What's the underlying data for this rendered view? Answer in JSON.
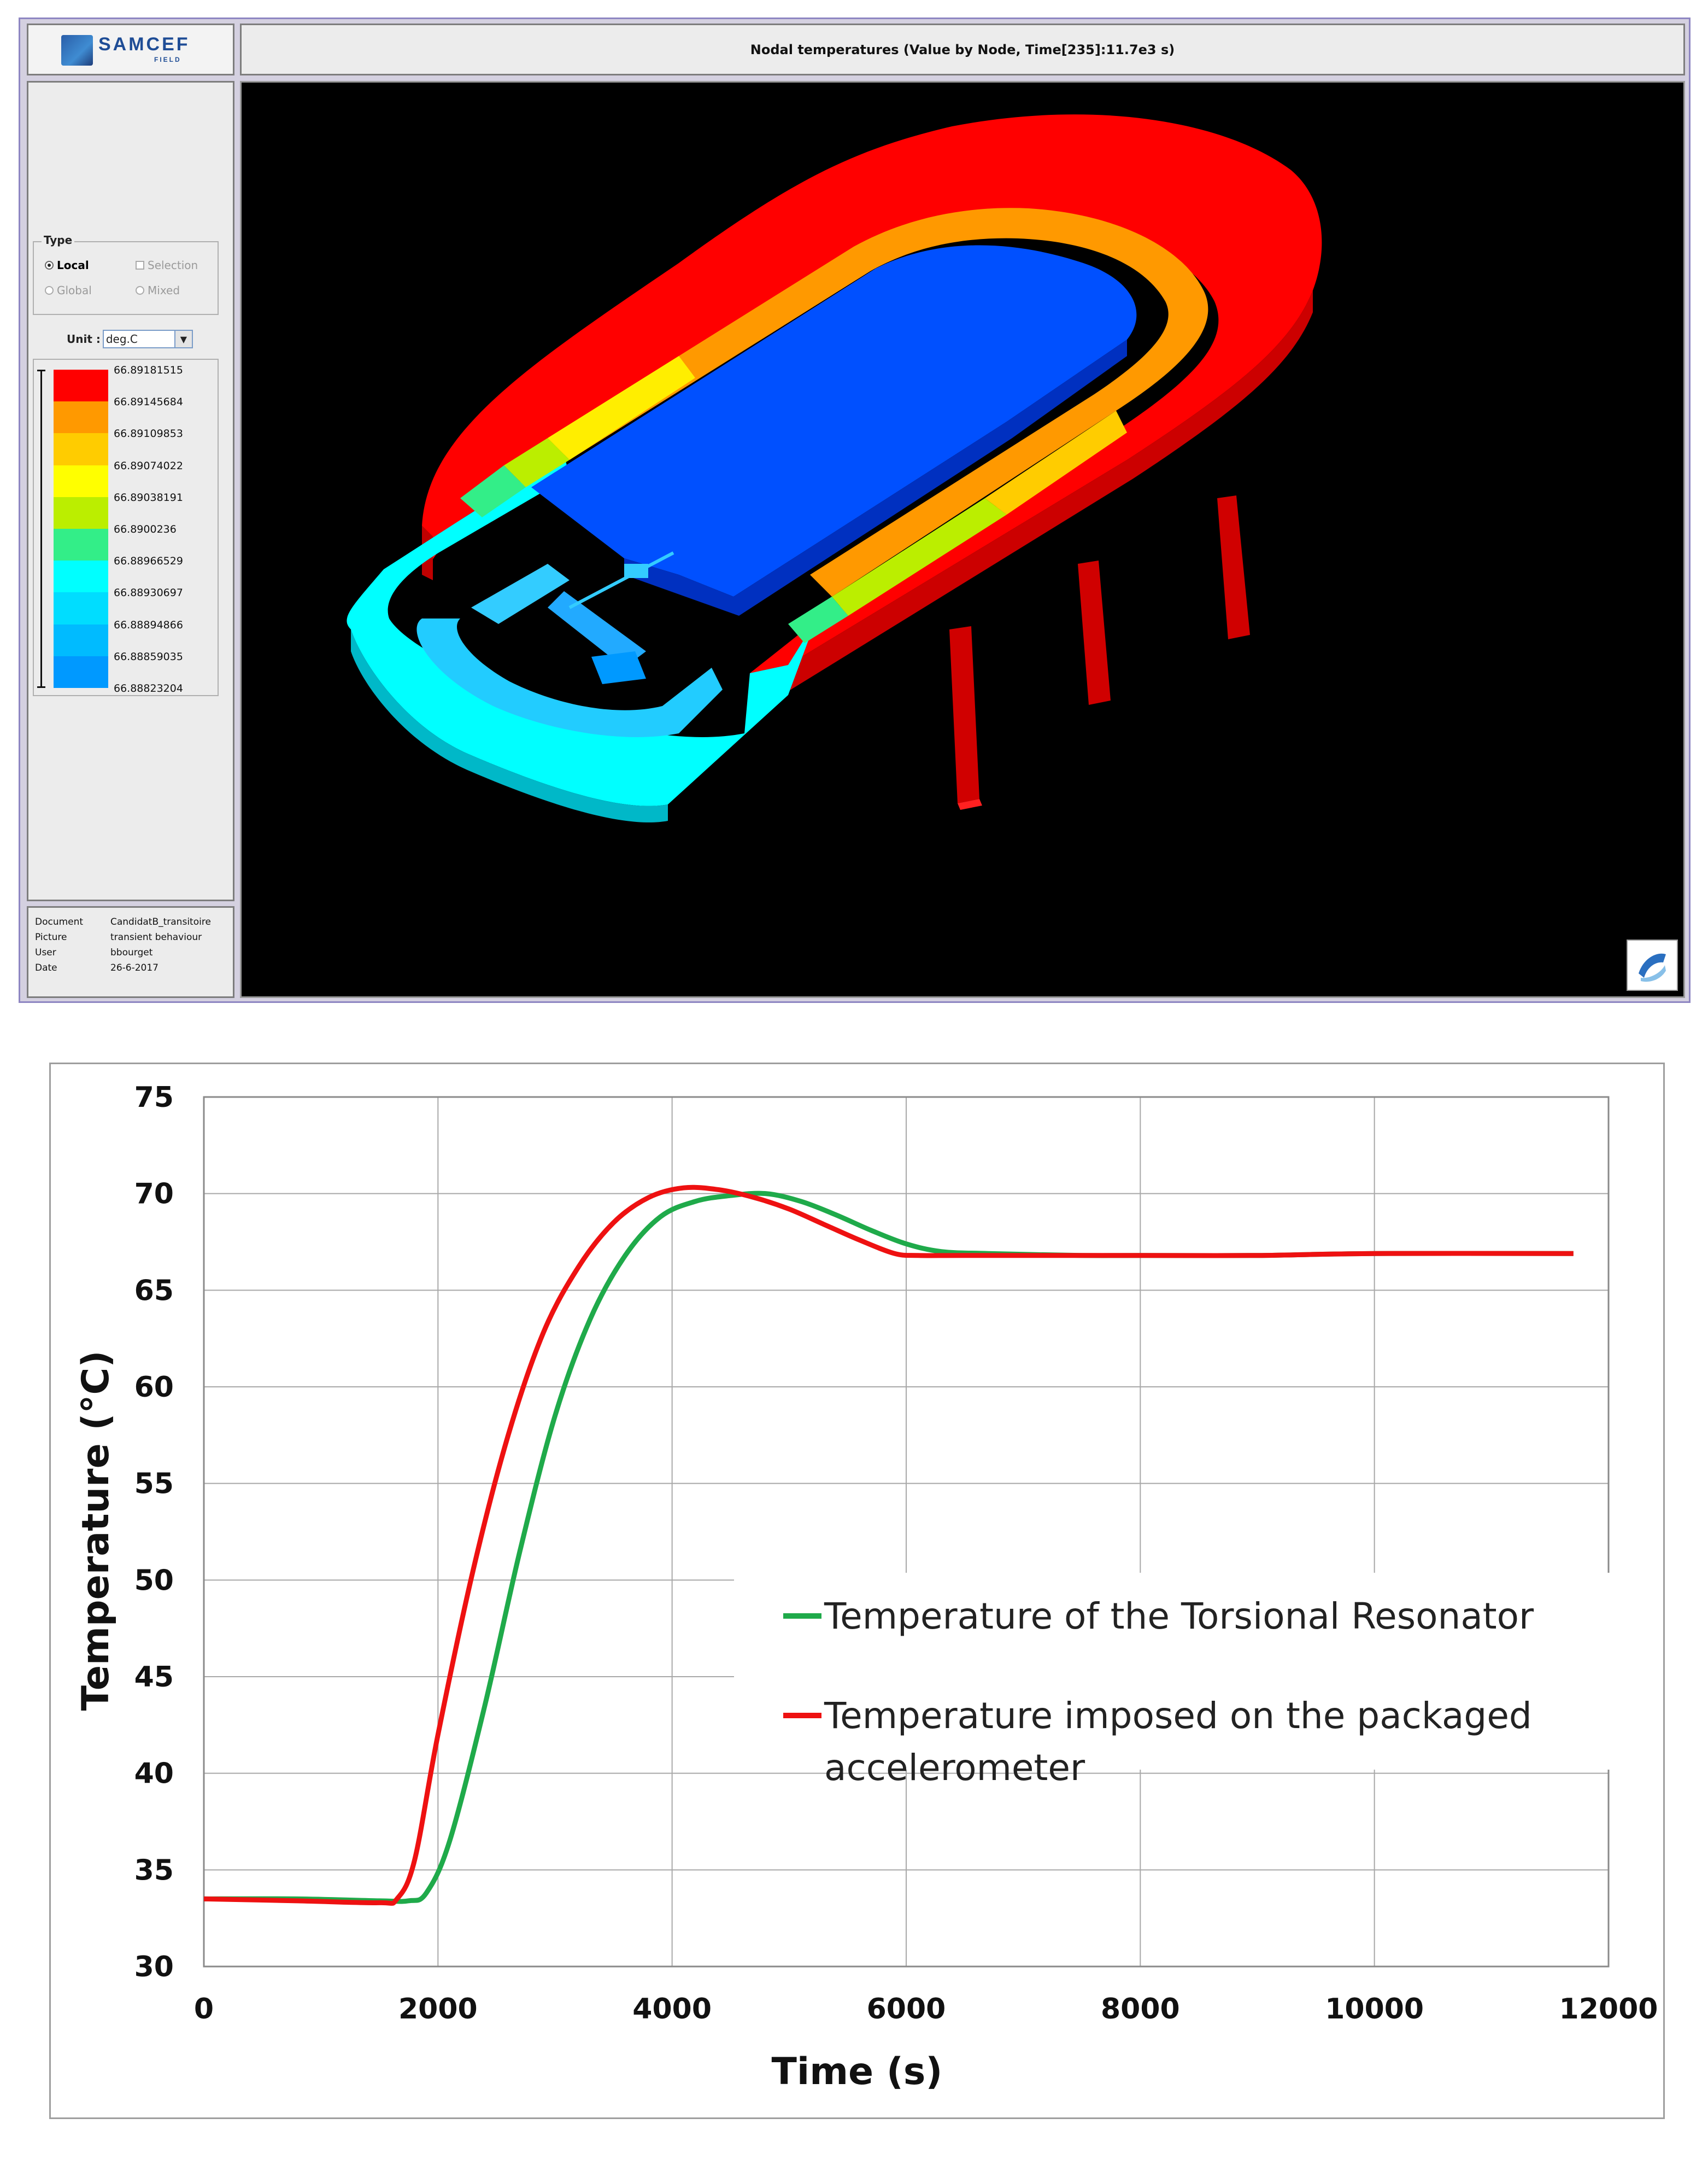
{
  "app": {
    "logo_text": "SAMCEF",
    "logo_sub": "FIELD",
    "title": "Nodal temperatures (Value by Node, Time[235]:11.7e3 s)"
  },
  "type_panel": {
    "legend": "Type",
    "local": "Local",
    "global": "Global",
    "selection": "Selection",
    "mixed": "Mixed",
    "unit_label": "Unit :",
    "unit_value": "deg.C"
  },
  "color_scale": {
    "colors": [
      "#ff0000",
      "#ff9900",
      "#ffcc00",
      "#ffff00",
      "#bbee00",
      "#33ee88",
      "#00ffff",
      "#00ddff",
      "#00bbff",
      "#0099ff",
      "#0044ff"
    ],
    "labels": [
      "66.89181515",
      "66.89145684",
      "66.89109853",
      "66.89074022",
      "66.89038191",
      "66.8900236",
      "66.88966529",
      "66.88930697",
      "66.88894866",
      "66.88859035",
      "66.88823204"
    ]
  },
  "info": [
    {
      "key": "Document",
      "value": "CandidatB_transitoire"
    },
    {
      "key": "Picture",
      "value": "transient behaviour"
    },
    {
      "key": "User",
      "value": "bbourget"
    },
    {
      "key": "Date",
      "value": "26-6-2017"
    }
  ],
  "chart_data": {
    "type": "line",
    "xlabel": "Time (s)",
    "ylabel": "Temperature (°C)",
    "xlim": [
      0,
      12000
    ],
    "ylim": [
      30,
      75
    ],
    "xticks": [
      0,
      2000,
      4000,
      6000,
      8000,
      10000,
      12000
    ],
    "yticks": [
      30,
      35,
      40,
      45,
      50,
      55,
      60,
      65,
      70,
      75
    ],
    "grid": true,
    "legend_position": "center-right",
    "series": [
      {
        "name": "Temperature of the Torsional Resonator",
        "color": "#1faa4a",
        "x": [
          0,
          800,
          1500,
          1750,
          1900,
          2100,
          2400,
          2700,
          3000,
          3300,
          3600,
          3900,
          4200,
          4500,
          4800,
          5100,
          5400,
          5700,
          6000,
          6300,
          6700,
          7500,
          8000,
          9000,
          10000,
          11700
        ],
        "y": [
          33.5,
          33.5,
          33.4,
          33.4,
          33.8,
          36.5,
          43.5,
          51.5,
          58.5,
          63.5,
          66.8,
          68.8,
          69.6,
          69.9,
          70.0,
          69.6,
          68.9,
          68.1,
          67.4,
          67.0,
          66.9,
          66.8,
          66.8,
          66.8,
          66.9,
          66.9
        ]
      },
      {
        "name": "Temperature imposed on the packaged accelerometer",
        "color": "#ee1111",
        "x": [
          0,
          800,
          1500,
          1650,
          1800,
          2000,
          2300,
          2600,
          2900,
          3200,
          3500,
          3800,
          4100,
          4400,
          4700,
          5000,
          5300,
          5600,
          5900,
          6100,
          6500,
          7500,
          8000,
          9000,
          10000,
          11700
        ],
        "y": [
          33.5,
          33.4,
          33.3,
          33.5,
          35.5,
          42.0,
          50.5,
          57.5,
          62.8,
          66.2,
          68.5,
          69.8,
          70.3,
          70.2,
          69.8,
          69.2,
          68.4,
          67.6,
          66.9,
          66.8,
          66.8,
          66.8,
          66.8,
          66.8,
          66.9,
          66.9
        ]
      }
    ]
  }
}
